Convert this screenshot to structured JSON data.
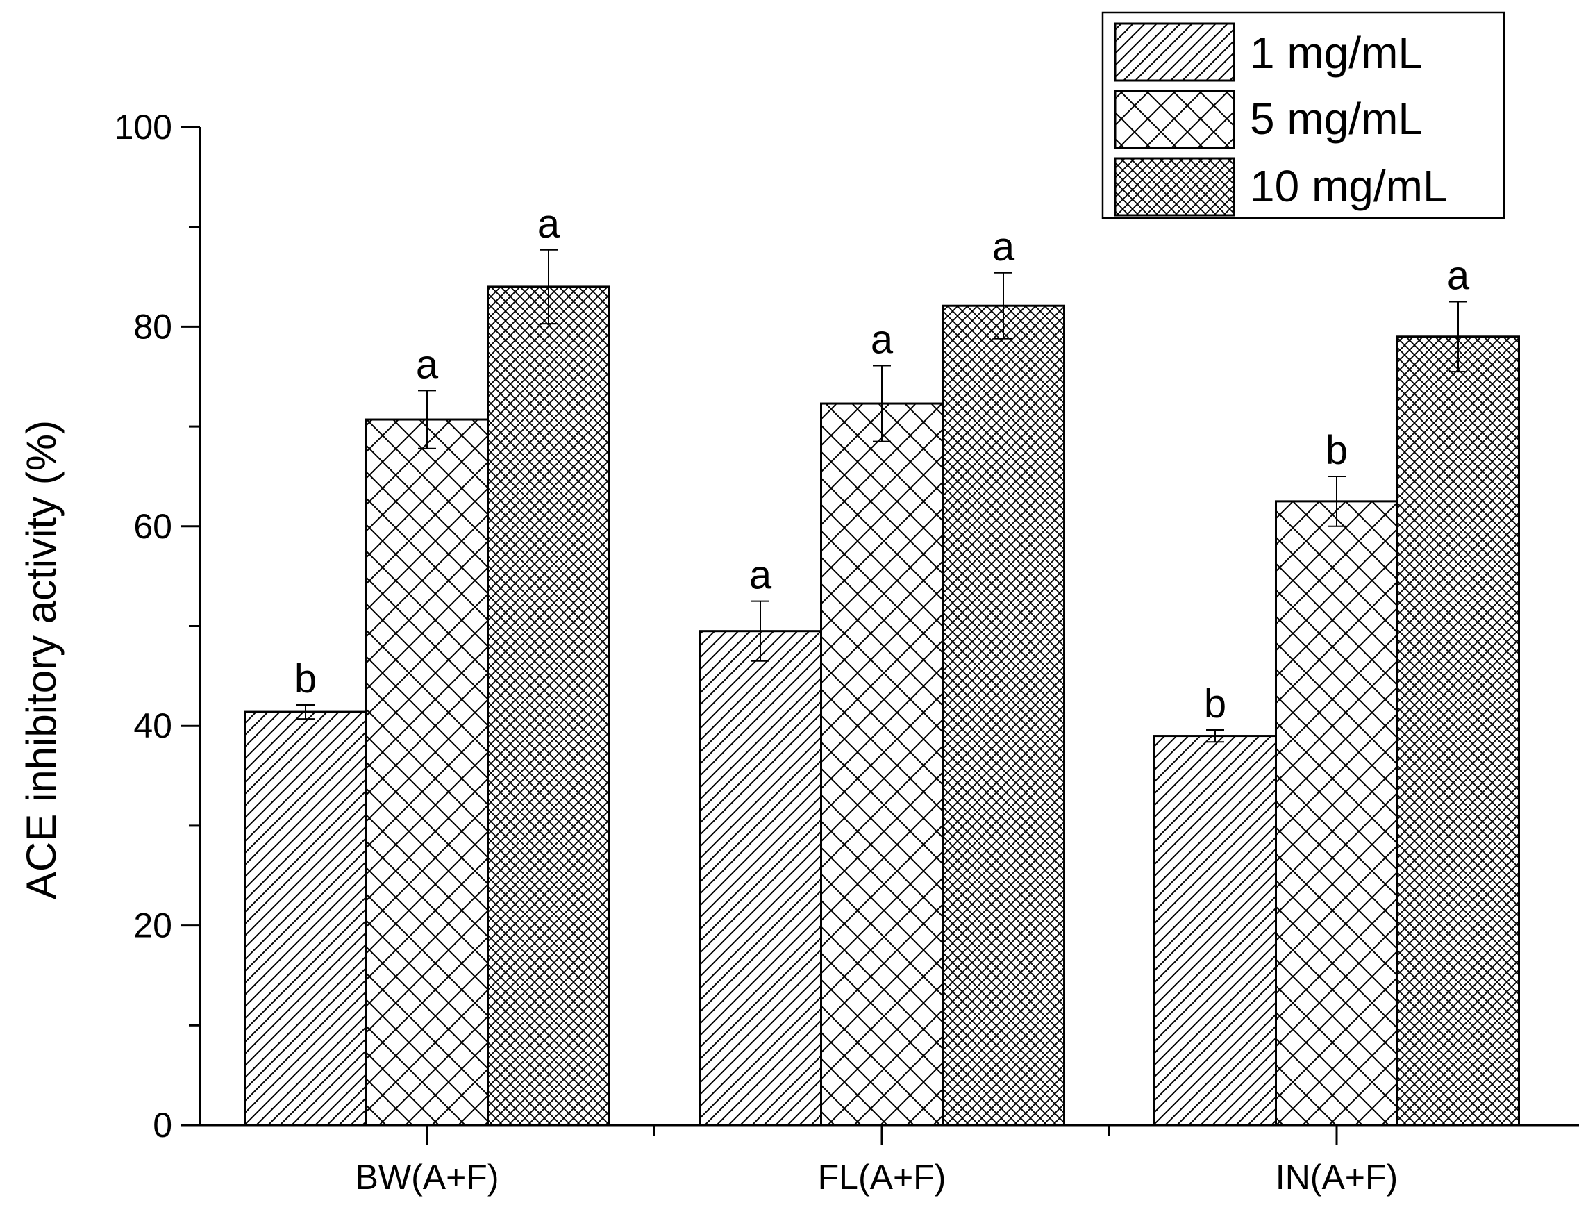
{
  "chart_data": {
    "type": "bar",
    "title": "",
    "xlabel": "",
    "ylabel": "ACE inhibitory activity (%)",
    "ylim": [
      0,
      100
    ],
    "yticks": [
      0,
      20,
      40,
      60,
      80,
      100
    ],
    "grid": false,
    "legend_position": "top-right",
    "categories": [
      "BW(A+F)",
      "FL(A+F)",
      "IN(A+F)"
    ],
    "series": [
      {
        "name": "1 mg/mL",
        "pattern": "diagonal",
        "values": [
          41.4,
          49.5,
          39.0
        ],
        "errors": [
          0.7,
          3.0,
          0.6
        ],
        "letters": [
          "b",
          "a",
          "b"
        ]
      },
      {
        "name": "5 mg/mL",
        "pattern": "crosshatch",
        "values": [
          70.7,
          72.3,
          62.5
        ],
        "errors": [
          2.9,
          3.8,
          2.5
        ],
        "letters": [
          "a",
          "a",
          "b"
        ]
      },
      {
        "name": "10 mg/mL",
        "pattern": "dense-crosshatch",
        "values": [
          84.0,
          82.1,
          79.0
        ],
        "errors": [
          3.7,
          3.3,
          3.5
        ],
        "letters": [
          "a",
          "a",
          "a"
        ]
      }
    ],
    "colors": {
      "stroke": "#000000",
      "fill": "#ffffff"
    }
  }
}
